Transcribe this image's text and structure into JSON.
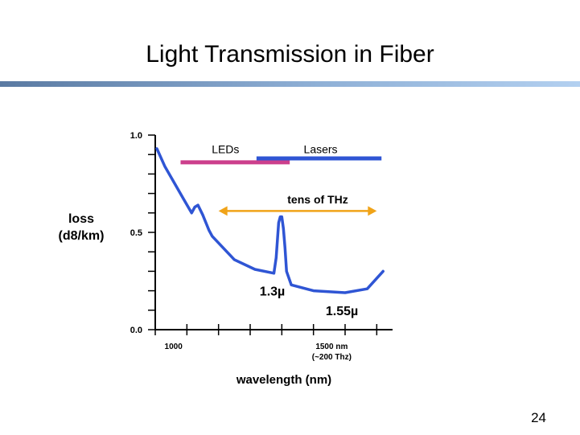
{
  "slide": {
    "title": "Light Transmission in Fiber",
    "page_number": "24"
  },
  "colors": {
    "curve": "#2f55d4",
    "leds_bar": "#cc3f8c",
    "lasers_bar": "#2f55d4",
    "thz_arrow": "#f0a318",
    "axis": "#000000",
    "title_rule_start": "#5a7aa2",
    "title_rule_end": "#b3d0f0"
  },
  "chart_data": {
    "type": "line",
    "ylabel": [
      "loss",
      "(d8/km)"
    ],
    "xlabel": "wavelength (nm)",
    "y_ticks": [
      {
        "value": 1.0,
        "label": "1.0"
      },
      {
        "value": 0.5,
        "label": "0.5"
      },
      {
        "value": 0.0,
        "label": "0.0"
      }
    ],
    "x_ticks": [
      {
        "value": 1000,
        "label": "1000",
        "sublabel": ""
      },
      {
        "value": 1500,
        "label": "1500 nm",
        "sublabel": "(~200 Thz)"
      }
    ],
    "ylim": [
      0,
      1.0
    ],
    "xlim": [
      950,
      1700
    ],
    "minor_x_ticks": [
      950,
      1050,
      1150,
      1250,
      1350,
      1450,
      1550,
      1650
    ],
    "minor_y_step": 0.1,
    "series": [
      {
        "x": [
          955,
          980,
          1040,
          1065,
          1075,
          1085,
          1100,
          1120,
          1130,
          1200,
          1265,
          1325,
          1332,
          1340,
          1345,
          1350,
          1355,
          1360,
          1365,
          1380,
          1450,
          1550,
          1620,
          1670
        ],
        "y": [
          0.93,
          0.84,
          0.67,
          0.6,
          0.63,
          0.64,
          0.59,
          0.51,
          0.48,
          0.36,
          0.31,
          0.29,
          0.37,
          0.55,
          0.58,
          0.58,
          0.52,
          0.42,
          0.3,
          0.23,
          0.2,
          0.19,
          0.21,
          0.3
        ]
      }
    ],
    "ranges": [
      {
        "label": "LEDs",
        "from": 1030,
        "to": 1375,
        "y": 0.86,
        "label_y": 0.94,
        "kind": "bar",
        "color_key": "leds_bar"
      },
      {
        "label": "Lasers",
        "from": 1270,
        "to": 1665,
        "y": 0.88,
        "label_y": 0.94,
        "kind": "bar",
        "color_key": "lasers_bar"
      },
      {
        "label": "tens of THz",
        "from": 1150,
        "to": 1650,
        "y": 0.61,
        "label_y": 0.67,
        "kind": "double-arrow",
        "color_key": "thz_arrow"
      }
    ],
    "annotations": [
      {
        "text": "1.3µ",
        "x": 1320,
        "y": 0.2
      },
      {
        "text": "1.55µ",
        "x": 1540,
        "y": 0.1
      }
    ]
  }
}
